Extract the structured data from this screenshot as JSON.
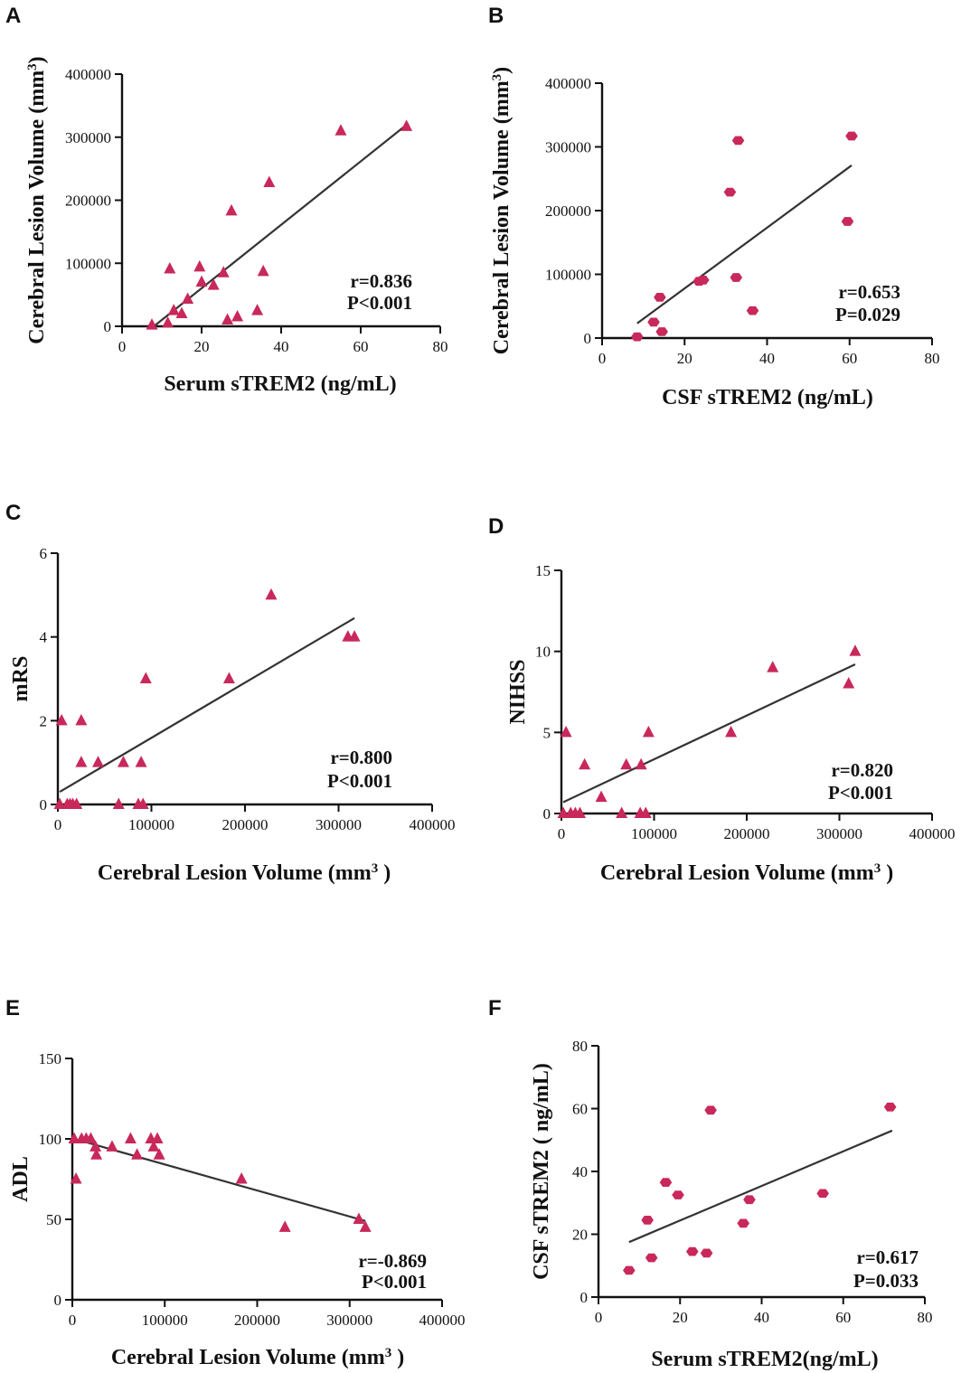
{
  "figure": {
    "marker_color": "#c8285a",
    "line_color": "#333333"
  },
  "chart_data": [
    {
      "panel": "A",
      "type": "scatter",
      "marker": "triangle",
      "xlabel": "Serum sTREM2 (ng/mL)",
      "ylabel_main": "Cerebral Lesion Volume (mm",
      "ylabel_sup": "3",
      "ylabel_end": ")",
      "xlim": [
        0,
        80
      ],
      "ylim": [
        0,
        400000
      ],
      "xticks": [
        0,
        20,
        40,
        60,
        80
      ],
      "yticks": [
        0,
        100000,
        200000,
        300000,
        400000
      ],
      "xtick_labels": [
        "0",
        "20",
        "40",
        "60",
        "80"
      ],
      "ytick_labels": [
        "0",
        "100000",
        "200000",
        "300000",
        "400000"
      ],
      "stats": [
        "r=0.836",
        "P<0.001"
      ],
      "fit": [
        [
          8,
          0
        ],
        [
          72,
          322000
        ]
      ],
      "x": [
        7.5,
        11.5,
        12,
        13,
        15,
        16.5,
        19.5,
        20,
        23,
        25.5,
        26.5,
        27.5,
        29,
        34,
        35.5,
        37,
        55,
        71.5
      ],
      "y": [
        2000,
        5000,
        91000,
        25000,
        20000,
        43000,
        94000,
        70000,
        65000,
        85000,
        10000,
        183000,
        15000,
        25000,
        87000,
        228000,
        310000,
        317000
      ]
    },
    {
      "panel": "B",
      "type": "scatter",
      "marker": "hexagon",
      "xlabel": "CSF sTREM2 (ng/mL)",
      "ylabel_main": "Cerebral Lesion Volume (mm",
      "ylabel_sup": "3",
      "ylabel_end": ")",
      "xlim": [
        0,
        80
      ],
      "ylim": [
        0,
        400000
      ],
      "xticks": [
        0,
        20,
        40,
        60,
        80
      ],
      "yticks": [
        0,
        100000,
        200000,
        300000,
        400000
      ],
      "xtick_labels": [
        "0",
        "20",
        "40",
        "60",
        "80"
      ],
      "ytick_labels": [
        "0",
        "100000",
        "200000",
        "300000",
        "400000"
      ],
      "stats": [
        "r=0.653",
        "P=0.029"
      ],
      "fit": [
        [
          8.5,
          23000
        ],
        [
          60.5,
          271000
        ]
      ],
      "x": [
        8.5,
        12.5,
        14.5,
        14,
        23.5,
        24.5,
        31,
        32.5,
        33,
        36.5,
        59.5,
        60.5
      ],
      "y": [
        2000,
        25000,
        10000,
        64000,
        89000,
        91000,
        229000,
        95000,
        310000,
        43000,
        183000,
        317000
      ]
    },
    {
      "panel": "C",
      "type": "scatter",
      "marker": "triangle",
      "xlabel_main": "Cerebral Lesion Volume (mm",
      "xlabel_sup": "3",
      "xlabel_end": " )",
      "ylabel": "mRS",
      "xlim": [
        0,
        400000
      ],
      "ylim": [
        0,
        6
      ],
      "xticks": [
        0,
        100000,
        200000,
        300000,
        400000
      ],
      "yticks": [
        0,
        2,
        4,
        6
      ],
      "xtick_labels": [
        "0",
        "100000",
        "200000",
        "300000",
        "400000"
      ],
      "ytick_labels": [
        "0",
        "2",
        "4",
        "6"
      ],
      "stats": [
        "r=0.800",
        "P<0.001"
      ],
      "fit": [
        [
          2000,
          0.3
        ],
        [
          317000,
          4.45
        ]
      ],
      "x": [
        2000,
        4000,
        10000,
        13000,
        16000,
        20000,
        25000,
        25000,
        43000,
        65000,
        70000,
        86000,
        89000,
        91000,
        94000,
        183000,
        228000,
        310000,
        317000
      ],
      "y": [
        0,
        2,
        0,
        0,
        0,
        0,
        2,
        1,
        1,
        0,
        1,
        0,
        1,
        0,
        3,
        3,
        5,
        4,
        4
      ]
    },
    {
      "panel": "D",
      "type": "scatter",
      "marker": "triangle",
      "xlabel_main": "Cerebral Lesion Volume (mm",
      "xlabel_sup": "3",
      "xlabel_end": " )",
      "ylabel": "NIHSS",
      "xlim": [
        0,
        400000
      ],
      "ylim": [
        0,
        15
      ],
      "xticks": [
        0,
        100000,
        200000,
        300000,
        400000
      ],
      "yticks": [
        0,
        5,
        10,
        15
      ],
      "xtick_labels": [
        "0",
        "100000",
        "200000",
        "300000",
        "400000"
      ],
      "ytick_labels": [
        "0",
        "5",
        "10",
        "15"
      ],
      "stats": [
        "r=0.820",
        "P<0.001"
      ],
      "fit": [
        [
          2000,
          0.7
        ],
        [
          317000,
          9.2
        ]
      ],
      "x": [
        2000,
        5000,
        10000,
        15000,
        20000,
        25000,
        43000,
        65000,
        70000,
        85000,
        86000,
        91000,
        94000,
        183000,
        228000,
        310000,
        317000
      ],
      "y": [
        0,
        5,
        0,
        0,
        0,
        3,
        1,
        0,
        3,
        0,
        3,
        0,
        5,
        5,
        9,
        8,
        10
      ]
    },
    {
      "panel": "E",
      "type": "scatter",
      "marker": "triangle",
      "xlabel_main": "Cerebral Lesion Volume (mm",
      "xlabel_sup": "3",
      "xlabel_end": " )",
      "ylabel": "ADL",
      "xlim": [
        0,
        400000
      ],
      "ylim": [
        0,
        150
      ],
      "xticks": [
        0,
        100000,
        200000,
        300000,
        400000
      ],
      "yticks": [
        0,
        50,
        100,
        150
      ],
      "xtick_labels": [
        "0",
        "100000",
        "200000",
        "300000",
        "400000"
      ],
      "ytick_labels": [
        "0",
        "50",
        "100",
        "150"
      ],
      "stats": [
        "r=-0.869",
        "P<0.001"
      ],
      "fit": [
        [
          2000,
          100
        ],
        [
          317000,
          49
        ]
      ],
      "x": [
        2000,
        4000,
        10000,
        15000,
        20000,
        25000,
        26000,
        43000,
        63000,
        70000,
        85000,
        88000,
        92000,
        94000,
        183000,
        230000,
        310000,
        317000
      ],
      "y": [
        100,
        75,
        100,
        100,
        100,
        95,
        90,
        95,
        100,
        90,
        100,
        95,
        100,
        90,
        75,
        45,
        50,
        45
      ]
    },
    {
      "panel": "F",
      "type": "scatter",
      "marker": "hexagon",
      "xlabel": "Serum sTREM2(ng/mL)",
      "ylabel": "CSF sTREM2 ( ng/mL)",
      "xlim": [
        0,
        80
      ],
      "ylim": [
        0,
        80
      ],
      "xticks": [
        0,
        20,
        40,
        60,
        80
      ],
      "yticks": [
        0,
        20,
        40,
        60,
        80
      ],
      "xtick_labels": [
        "0",
        "20",
        "40",
        "60",
        "80"
      ],
      "ytick_labels": [
        "0",
        "20",
        "40",
        "60",
        "80"
      ],
      "stats": [
        "r=0.617",
        "P=0.033"
      ],
      "fit": [
        [
          7.5,
          17.5
        ],
        [
          72,
          53
        ]
      ],
      "x": [
        7.5,
        12,
        13,
        16.5,
        19.5,
        23,
        26.5,
        27.5,
        35.5,
        37,
        55,
        71.5
      ],
      "y": [
        8.5,
        24.5,
        12.5,
        36.5,
        32.5,
        14.5,
        14,
        59.5,
        23.5,
        31,
        33,
        60.5
      ]
    }
  ]
}
